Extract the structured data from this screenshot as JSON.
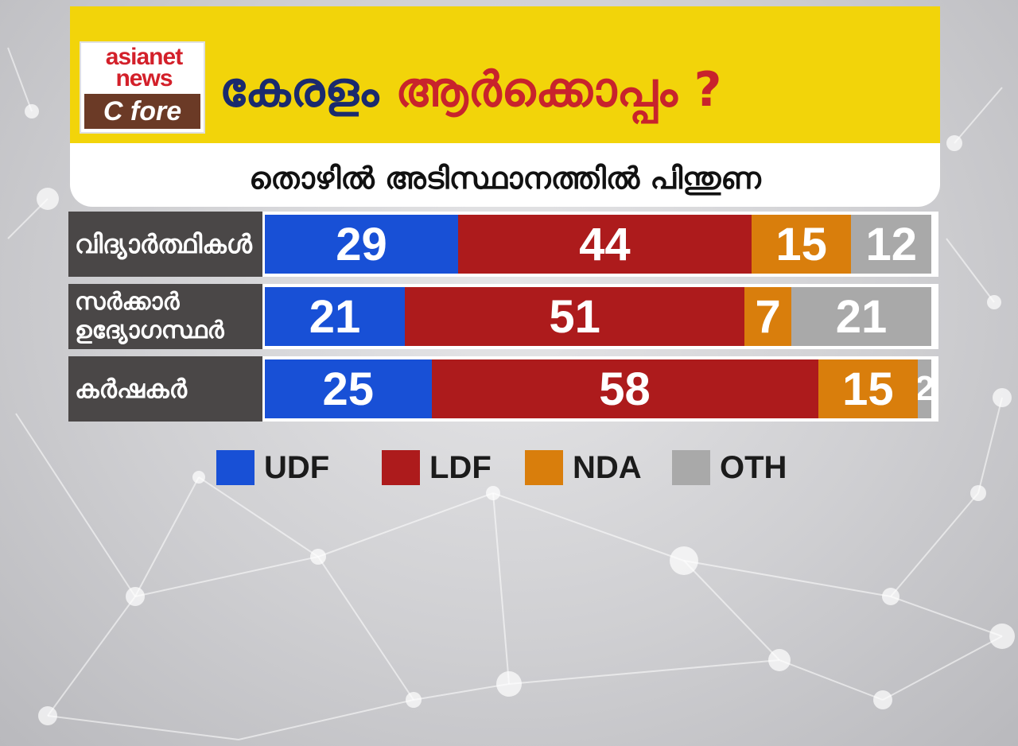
{
  "logo": {
    "line1": "asianet",
    "line2": "news",
    "line3": "C fore"
  },
  "title": {
    "part1": "കേരളം",
    "part2": "ആർക്കൊപ്പം ?"
  },
  "subtitle": "തൊഴിൽ അടിസ്ഥാനത്തിൽ പിന്തുണ",
  "colors": {
    "UDF": "#1850d6",
    "LDF": "#ad1b1c",
    "NDA": "#d97e0c",
    "OTH": "#a9a9a9",
    "header": "#f2d40a"
  },
  "chart_data": {
    "type": "bar",
    "orientation": "horizontal",
    "stacked": true,
    "categories": [
      "വിദ്യാർത്ഥികൾ",
      "സർക്കാർ ഉദ്യോഗസ്ഥർ",
      "കർഷകർ"
    ],
    "series": [
      {
        "name": "UDF",
        "values": [
          29,
          21,
          25
        ]
      },
      {
        "name": "LDF",
        "values": [
          44,
          51,
          58
        ]
      },
      {
        "name": "NDA",
        "values": [
          15,
          7,
          15
        ]
      },
      {
        "name": "OTH",
        "values": [
          12,
          21,
          2
        ]
      }
    ],
    "legend": "bottom",
    "title": "തൊഴിൽ അടിസ്ഥാനത്തിൽ പിന്തുണ"
  },
  "row_labels": [
    {
      "lines": [
        "വിദ്യാർത്ഥികൾ"
      ]
    },
    {
      "lines": [
        "സർക്കാർ",
        "ഉദ്യോഗസ്ഥർ"
      ]
    },
    {
      "lines": [
        "കർഷകർ"
      ]
    }
  ]
}
